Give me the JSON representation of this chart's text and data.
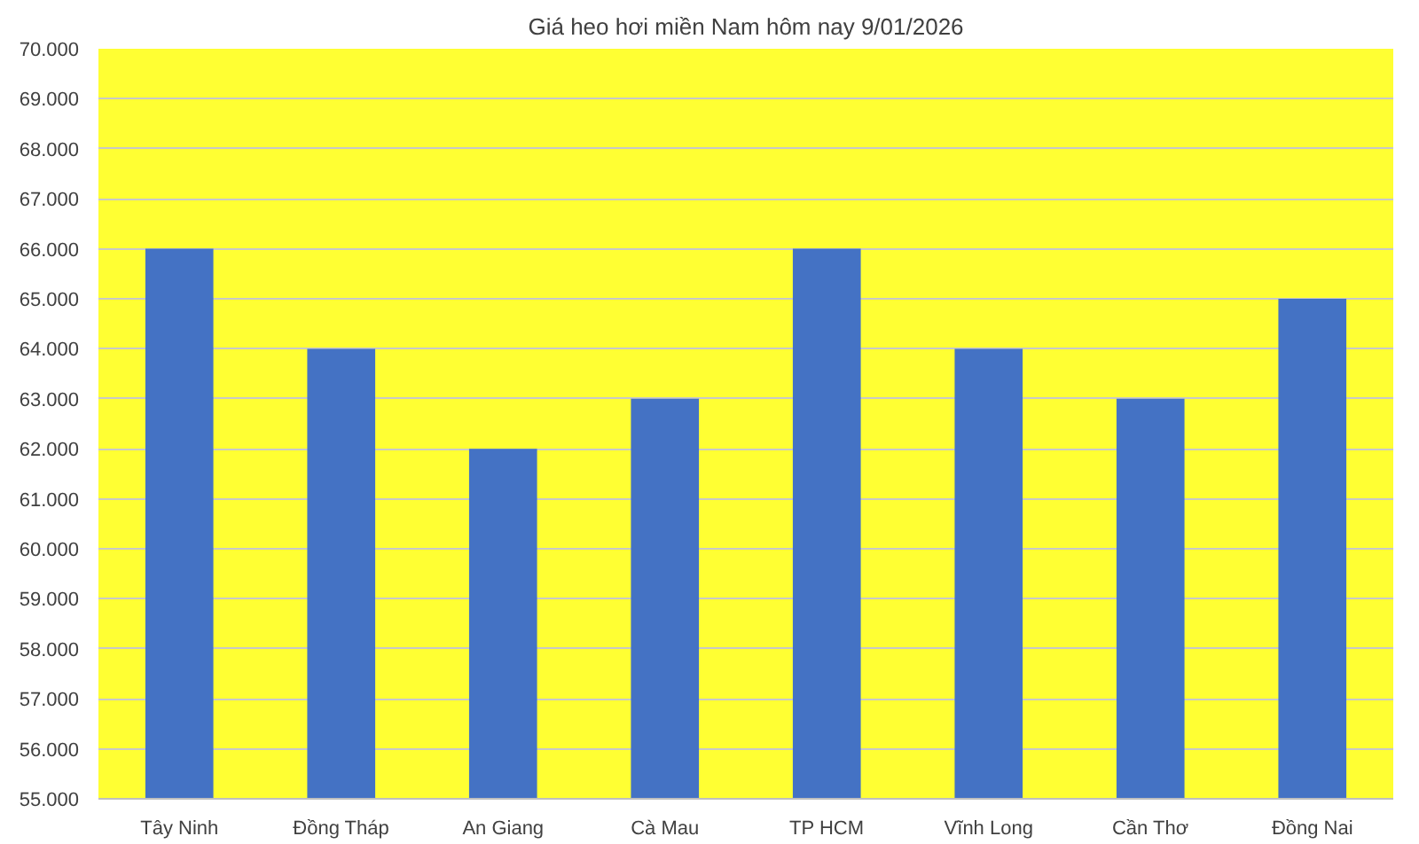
{
  "chart_data": {
    "type": "bar",
    "title": "Giá heo hơi miền Nam hôm nay 9/01/2026",
    "categories": [
      "Tây Ninh",
      "Đồng Tháp",
      "An Giang",
      "Cà Mau",
      "TP HCM",
      "Vĩnh Long",
      "Cần Thơ",
      "Đồng Nai"
    ],
    "values": [
      66000,
      64000,
      62000,
      63000,
      66000,
      64000,
      63000,
      65000
    ],
    "color": "#4472c4",
    "ylim": [
      55000,
      70000
    ],
    "yticks": [
      {
        "value": 55000,
        "label": "55.000"
      },
      {
        "value": 56000,
        "label": "56.000"
      },
      {
        "value": 57000,
        "label": "57.000"
      },
      {
        "value": 58000,
        "label": "58.000"
      },
      {
        "value": 59000,
        "label": "59.000"
      },
      {
        "value": 60000,
        "label": "60.000"
      },
      {
        "value": 61000,
        "label": "61.000"
      },
      {
        "value": 62000,
        "label": "62.000"
      },
      {
        "value": 63000,
        "label": "63.000"
      },
      {
        "value": 64000,
        "label": "64.000"
      },
      {
        "value": 65000,
        "label": "65.000"
      },
      {
        "value": 66000,
        "label": "66.000"
      },
      {
        "value": 67000,
        "label": "67.000"
      },
      {
        "value": 68000,
        "label": "68.000"
      },
      {
        "value": 69000,
        "label": "69.000"
      },
      {
        "value": 70000,
        "label": "70.000"
      }
    ],
    "grid": "y"
  }
}
